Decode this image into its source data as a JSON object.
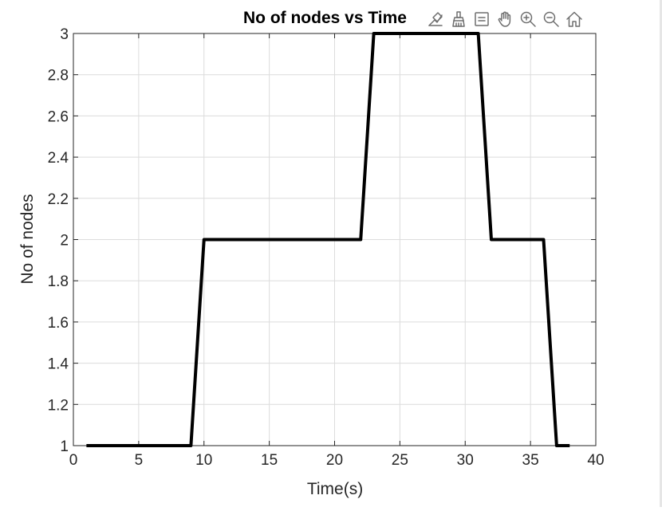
{
  "toolbar": {
    "icons": [
      "data-tips-icon",
      "brush-icon",
      "legend-icon",
      "pan-hand-icon",
      "zoom-in-icon",
      "zoom-out-icon",
      "home-restore-icon"
    ]
  },
  "chart_data": {
    "type": "line",
    "title": "No of nodes vs Time",
    "xlabel": "Time(s)",
    "ylabel": "No of nodes",
    "xlim": [
      0,
      40
    ],
    "ylim": [
      1,
      3
    ],
    "xticks": [
      0,
      5,
      10,
      15,
      20,
      25,
      30,
      35,
      40
    ],
    "yticks": [
      1,
      1.2,
      1.4,
      1.6,
      1.8,
      2,
      2.2,
      2.4,
      2.6,
      2.8,
      3
    ],
    "grid": true,
    "series": [
      {
        "color": "#000000",
        "x": [
          1,
          9,
          10,
          22,
          23,
          31,
          32,
          36,
          37,
          38
        ],
        "y": [
          1,
          1,
          2,
          2,
          3,
          3,
          2,
          2,
          1,
          1
        ]
      }
    ]
  }
}
